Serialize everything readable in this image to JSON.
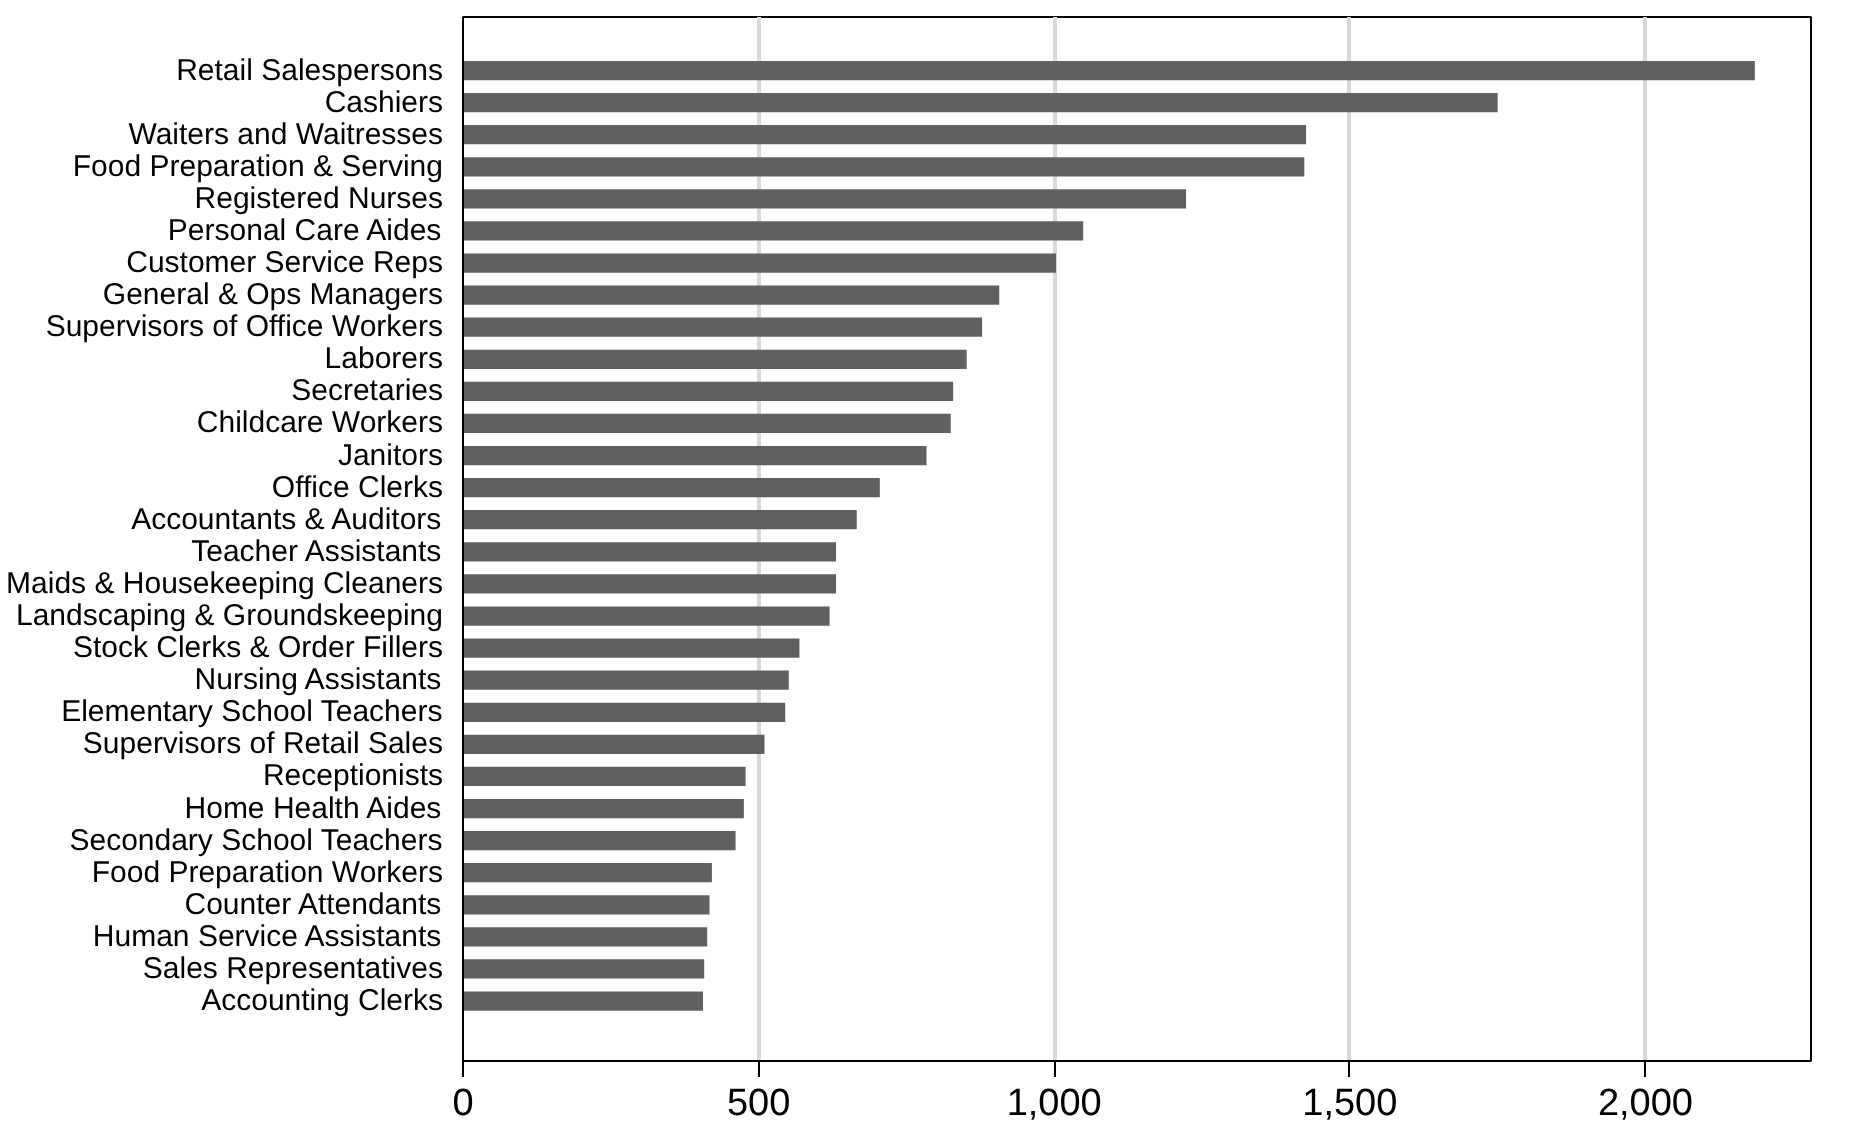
{
  "chart_data": {
    "type": "bar",
    "orientation": "horizontal",
    "categories": [
      "Retail Salespersons",
      "Cashiers",
      "Waiters and Waitresses",
      "Food Preparation & Serving",
      "Registered Nurses",
      "Personal Care Aides",
      "Customer Service Reps",
      "General & Ops Managers",
      "Supervisors of Office Workers",
      "Laborers",
      "Secretaries",
      "Childcare Workers",
      "Janitors",
      "Office Clerks",
      "Accountants & Auditors",
      "Teacher Assistants",
      "Maids & Housekeeping Cleaners",
      "Landscaping & Groundskeeping",
      "Stock Clerks & Order Fillers",
      "Nursing Assistants",
      "Elementary School Teachers",
      "Supervisors of Retail Sales",
      "Receptionists",
      "Home Health Aides",
      "Secondary School Teachers",
      "Food Preparation Workers",
      "Counter Attendants",
      "Human Service Assistants",
      "Sales Representatives",
      "Accounting Clerks"
    ],
    "values": [
      2185,
      1750,
      1426,
      1423,
      1223,
      1049,
      1003,
      907,
      878,
      852,
      829,
      825,
      784,
      705,
      666,
      631,
      631,
      620,
      569,
      551,
      545,
      510,
      478,
      475,
      461,
      421,
      417,
      413,
      408,
      406
    ],
    "color": "#606060",
    "xlim": [
      0,
      2280
    ],
    "xticks": [
      0,
      {
        "value": 500,
        "label": "500"
      },
      {
        "value": 1000,
        "label": "1,000"
      },
      {
        "value": 1500,
        "label": "1,500"
      },
      {
        "value": 2000,
        "label": "2,000"
      }
    ],
    "grid": "x"
  }
}
